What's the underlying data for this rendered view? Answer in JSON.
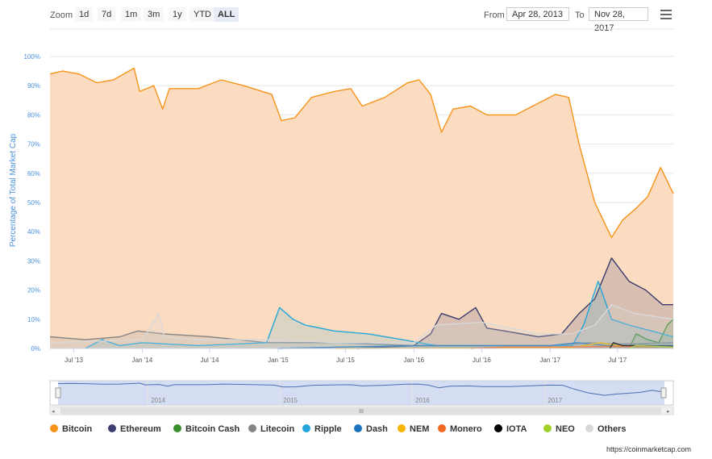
{
  "toolbar": {
    "zoom_label": "Zoom",
    "zoom_buttons": [
      "1d",
      "7d",
      "1m",
      "3m",
      "1y",
      "YTD",
      "ALL"
    ],
    "active_zoom": "ALL",
    "from_label": "From",
    "from_value": "Apr 28, 2013",
    "to_label": "To",
    "to_value": "Nov 28, 2017"
  },
  "credit": "https://coinmarketcap.com",
  "chart_data": {
    "type": "area",
    "title": "",
    "xlabel": "",
    "ylabel": "Percentage of Total Market Cap",
    "x_range": [
      "2013-04-28",
      "2017-11-28"
    ],
    "ylim": [
      0,
      100
    ],
    "yticks": [
      "0%",
      "10%",
      "20%",
      "30%",
      "40%",
      "50%",
      "60%",
      "70%",
      "80%",
      "90%",
      "100%"
    ],
    "xticks": [
      {
        "date": "2013-07-01",
        "label": "Jul '13"
      },
      {
        "date": "2014-01-01",
        "label": "Jan '14"
      },
      {
        "date": "2014-07-01",
        "label": "Jul '14"
      },
      {
        "date": "2015-01-01",
        "label": "Jan '15"
      },
      {
        "date": "2015-07-01",
        "label": "Jul '15"
      },
      {
        "date": "2016-01-01",
        "label": "Jan '16"
      },
      {
        "date": "2016-07-01",
        "label": "Jul '16"
      },
      {
        "date": "2017-01-01",
        "label": "Jan '17"
      },
      {
        "date": "2017-07-01",
        "label": "Jul '17"
      }
    ],
    "grid": true,
    "legend_position": "bottom",
    "series": [
      {
        "name": "Bitcoin",
        "color": "#f7931a",
        "fill": "#fcdcc0",
        "points": [
          [
            "2013-04-28",
            94
          ],
          [
            "2013-06-01",
            95
          ],
          [
            "2013-07-15",
            94
          ],
          [
            "2013-09-01",
            91
          ],
          [
            "2013-10-15",
            92
          ],
          [
            "2013-12-10",
            96
          ],
          [
            "2013-12-25",
            88
          ],
          [
            "2014-02-01",
            90
          ],
          [
            "2014-02-25",
            82
          ],
          [
            "2014-03-15",
            89
          ],
          [
            "2014-06-01",
            89
          ],
          [
            "2014-08-01",
            92
          ],
          [
            "2014-10-01",
            90
          ],
          [
            "2014-12-15",
            87
          ],
          [
            "2015-01-10",
            78
          ],
          [
            "2015-02-15",
            79
          ],
          [
            "2015-04-01",
            86
          ],
          [
            "2015-06-01",
            88
          ],
          [
            "2015-07-15",
            89
          ],
          [
            "2015-08-15",
            83
          ],
          [
            "2015-10-15",
            86
          ],
          [
            "2015-12-15",
            91
          ],
          [
            "2016-01-15",
            92
          ],
          [
            "2016-02-15",
            87
          ],
          [
            "2016-03-15",
            74
          ],
          [
            "2016-04-15",
            82
          ],
          [
            "2016-06-01",
            83
          ],
          [
            "2016-07-15",
            80
          ],
          [
            "2016-10-01",
            80
          ],
          [
            "2016-11-15",
            83
          ],
          [
            "2017-01-15",
            87
          ],
          [
            "2017-02-20",
            86
          ],
          [
            "2017-03-20",
            70
          ],
          [
            "2017-05-01",
            50
          ],
          [
            "2017-06-15",
            38
          ],
          [
            "2017-07-15",
            44
          ],
          [
            "2017-08-20",
            48
          ],
          [
            "2017-09-20",
            52
          ],
          [
            "2017-10-25",
            62
          ],
          [
            "2017-11-28",
            53
          ]
        ]
      },
      {
        "name": "Ethereum",
        "color": "#3c3c6e",
        "fill": "rgba(60,60,110,0.18)",
        "points": [
          [
            "2015-08-01",
            0
          ],
          [
            "2016-01-01",
            1
          ],
          [
            "2016-02-15",
            5
          ],
          [
            "2016-03-15",
            12
          ],
          [
            "2016-05-01",
            10
          ],
          [
            "2016-06-15",
            14
          ],
          [
            "2016-07-15",
            7
          ],
          [
            "2016-09-01",
            6
          ],
          [
            "2016-12-01",
            4
          ],
          [
            "2017-02-01",
            5
          ],
          [
            "2017-03-20",
            12
          ],
          [
            "2017-05-01",
            17
          ],
          [
            "2017-06-15",
            31
          ],
          [
            "2017-08-01",
            23
          ],
          [
            "2017-09-15",
            20
          ],
          [
            "2017-10-30",
            15
          ],
          [
            "2017-11-28",
            15
          ]
        ]
      },
      {
        "name": "Bitcoin Cash",
        "color": "#3b8e2c",
        "fill": "rgba(59,142,44,0.15)",
        "points": [
          [
            "2017-08-01",
            0
          ],
          [
            "2017-08-20",
            5
          ],
          [
            "2017-09-20",
            3
          ],
          [
            "2017-10-20",
            2
          ],
          [
            "2017-11-12",
            8
          ],
          [
            "2017-11-28",
            10
          ]
        ]
      },
      {
        "name": "Litecoin",
        "color": "#858585",
        "fill": "rgba(140,140,140,0.18)",
        "points": [
          [
            "2013-04-28",
            4
          ],
          [
            "2013-08-01",
            3
          ],
          [
            "2013-11-01",
            4
          ],
          [
            "2013-12-20",
            6
          ],
          [
            "2014-03-01",
            5
          ],
          [
            "2014-07-01",
            4
          ],
          [
            "2014-12-01",
            2
          ],
          [
            "2015-06-01",
            2
          ],
          [
            "2016-01-01",
            1
          ],
          [
            "2016-07-01",
            1
          ],
          [
            "2017-01-01",
            1
          ],
          [
            "2017-04-15",
            2
          ],
          [
            "2017-07-01",
            1.5
          ],
          [
            "2017-11-28",
            2
          ]
        ]
      },
      {
        "name": "Ripple",
        "color": "#23a6da",
        "fill": "rgba(35,166,218,0.15)",
        "points": [
          [
            "2013-08-01",
            0
          ],
          [
            "2013-09-15",
            3
          ],
          [
            "2013-11-01",
            1
          ],
          [
            "2014-01-01",
            2
          ],
          [
            "2014-06-01",
            1
          ],
          [
            "2014-12-01",
            2
          ],
          [
            "2015-01-05",
            14
          ],
          [
            "2015-02-10",
            10
          ],
          [
            "2015-03-15",
            8
          ],
          [
            "2015-06-01",
            6
          ],
          [
            "2015-09-01",
            5
          ],
          [
            "2015-12-01",
            3
          ],
          [
            "2016-03-01",
            1
          ],
          [
            "2016-12-01",
            1
          ],
          [
            "2017-03-01",
            1
          ],
          [
            "2017-04-01",
            8
          ],
          [
            "2017-05-10",
            23
          ],
          [
            "2017-06-15",
            10
          ],
          [
            "2017-08-01",
            8
          ],
          [
            "2017-10-01",
            6
          ],
          [
            "2017-11-28",
            4
          ]
        ]
      },
      {
        "name": "Dash",
        "color": "#1c75bc",
        "fill": "rgba(28,117,188,0.1)",
        "points": [
          [
            "2015-01-01",
            0
          ],
          [
            "2016-01-01",
            1
          ],
          [
            "2017-01-01",
            1
          ],
          [
            "2017-03-15",
            2
          ],
          [
            "2017-06-01",
            1
          ],
          [
            "2017-11-28",
            1
          ]
        ]
      },
      {
        "name": "NEM",
        "color": "#f4b400",
        "fill": "rgba(244,180,0,0.1)",
        "points": [
          [
            "2015-06-01",
            0
          ],
          [
            "2017-03-01",
            0.3
          ],
          [
            "2017-05-15",
            2
          ],
          [
            "2017-07-01",
            1
          ],
          [
            "2017-11-28",
            0.5
          ]
        ]
      },
      {
        "name": "Monero",
        "color": "#f26822",
        "fill": "rgba(242,104,34,0.1)",
        "points": [
          [
            "2016-06-01",
            0
          ],
          [
            "2016-09-01",
            0.5
          ],
          [
            "2017-01-01",
            0.5
          ],
          [
            "2017-06-01",
            0.7
          ],
          [
            "2017-11-28",
            0.6
          ]
        ]
      },
      {
        "name": "IOTA",
        "color": "#000000",
        "fill": "rgba(0,0,0,0.05)",
        "points": [
          [
            "2017-06-10",
            0
          ],
          [
            "2017-06-20",
            2
          ],
          [
            "2017-07-15",
            1
          ],
          [
            "2017-09-01",
            1
          ],
          [
            "2017-11-28",
            0.7
          ]
        ]
      },
      {
        "name": "NEO",
        "color": "#a2d02b",
        "fill": "rgba(162,208,43,0.1)",
        "points": [
          [
            "2017-08-01",
            0
          ],
          [
            "2017-08-20",
            1
          ],
          [
            "2017-11-28",
            0.5
          ]
        ]
      },
      {
        "name": "Others",
        "color": "#d9d9d9",
        "fill": "rgba(210,210,210,0.25)",
        "points": [
          [
            "2013-04-28",
            2
          ],
          [
            "2014-01-01",
            3
          ],
          [
            "2014-02-15",
            12
          ],
          [
            "2014-03-01",
            4
          ],
          [
            "2014-06-01",
            3
          ],
          [
            "2015-01-01",
            3
          ],
          [
            "2015-06-01",
            2
          ],
          [
            "2016-01-01",
            2
          ],
          [
            "2016-03-01",
            8
          ],
          [
            "2016-07-01",
            9
          ],
          [
            "2016-12-01",
            5
          ],
          [
            "2017-03-01",
            5
          ],
          [
            "2017-05-01",
            8
          ],
          [
            "2017-06-15",
            15
          ],
          [
            "2017-08-15",
            12
          ],
          [
            "2017-11-28",
            10
          ]
        ]
      }
    ],
    "navigator": {
      "labels": [
        "2014",
        "2015",
        "2016",
        "2017"
      ],
      "series": "Bitcoin"
    }
  }
}
